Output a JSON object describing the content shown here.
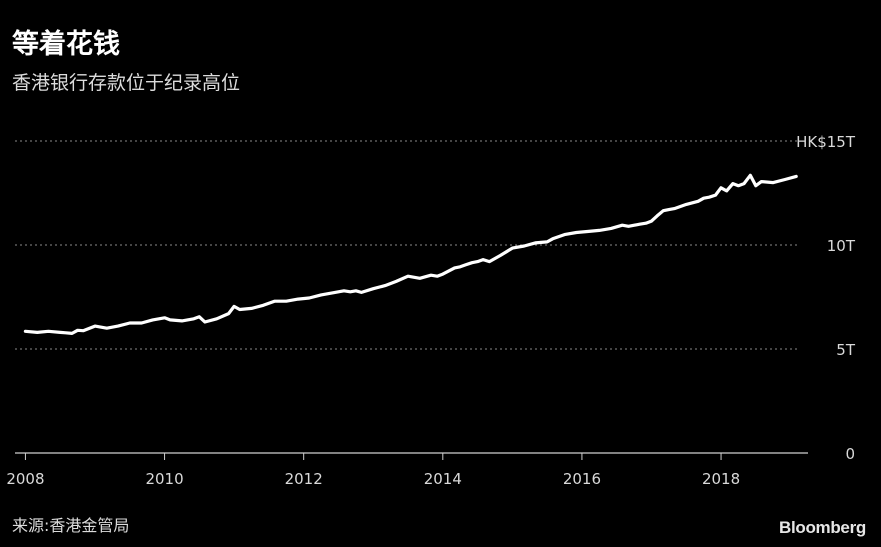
{
  "title": "等着花钱",
  "subtitle": "香港银行存款位于纪录高位",
  "source": "来源:香港金管局",
  "brand": "Bloomberg",
  "colors": {
    "background": "#000000",
    "line": "#ffffff",
    "grid": "#8a8a8a",
    "text": "#d9d9d9"
  },
  "chart_data": {
    "type": "line",
    "title": "等着花钱",
    "subtitle": "香港银行存款位于纪录高位",
    "xlabel": "",
    "ylabel": "",
    "xlim": [
      2007.85,
      2019.25
    ],
    "ylim": [
      0,
      15
    ],
    "grid": true,
    "x_ticks": [
      {
        "value": 2008,
        "label": "2008"
      },
      {
        "value": 2010,
        "label": "2010"
      },
      {
        "value": 2012,
        "label": "2012"
      },
      {
        "value": 2014,
        "label": "2014"
      },
      {
        "value": 2016,
        "label": "2016"
      },
      {
        "value": 2018,
        "label": "2018"
      }
    ],
    "y_ticks": [
      {
        "value": 0,
        "label": "0"
      },
      {
        "value": 5,
        "label": "5T"
      },
      {
        "value": 10,
        "label": "10T"
      },
      {
        "value": 15,
        "label": "HK$15T"
      }
    ],
    "series": [
      {
        "points": [
          [
            2008.0,
            5.85
          ],
          [
            2008.17,
            5.8
          ],
          [
            2008.33,
            5.85
          ],
          [
            2008.5,
            5.8
          ],
          [
            2008.58,
            5.78
          ],
          [
            2008.67,
            5.75
          ],
          [
            2008.75,
            5.9
          ],
          [
            2008.83,
            5.88
          ],
          [
            2009.0,
            6.1
          ],
          [
            2009.17,
            6.0
          ],
          [
            2009.33,
            6.1
          ],
          [
            2009.5,
            6.25
          ],
          [
            2009.67,
            6.25
          ],
          [
            2009.83,
            6.4
          ],
          [
            2010.0,
            6.5
          ],
          [
            2010.08,
            6.4
          ],
          [
            2010.25,
            6.35
          ],
          [
            2010.42,
            6.45
          ],
          [
            2010.5,
            6.55
          ],
          [
            2010.58,
            6.3
          ],
          [
            2010.75,
            6.45
          ],
          [
            2010.92,
            6.7
          ],
          [
            2011.0,
            7.05
          ],
          [
            2011.08,
            6.9
          ],
          [
            2011.25,
            6.95
          ],
          [
            2011.42,
            7.1
          ],
          [
            2011.58,
            7.3
          ],
          [
            2011.75,
            7.3
          ],
          [
            2011.92,
            7.4
          ],
          [
            2012.08,
            7.45
          ],
          [
            2012.25,
            7.6
          ],
          [
            2012.42,
            7.7
          ],
          [
            2012.58,
            7.8
          ],
          [
            2012.67,
            7.75
          ],
          [
            2012.75,
            7.8
          ],
          [
            2012.83,
            7.72
          ],
          [
            2013.0,
            7.9
          ],
          [
            2013.17,
            8.05
          ],
          [
            2013.33,
            8.25
          ],
          [
            2013.5,
            8.5
          ],
          [
            2013.67,
            8.4
          ],
          [
            2013.83,
            8.55
          ],
          [
            2013.92,
            8.5
          ],
          [
            2014.0,
            8.6
          ],
          [
            2014.17,
            8.9
          ],
          [
            2014.25,
            8.95
          ],
          [
            2014.33,
            9.05
          ],
          [
            2014.42,
            9.15
          ],
          [
            2014.5,
            9.2
          ],
          [
            2014.58,
            9.3
          ],
          [
            2014.67,
            9.2
          ],
          [
            2014.83,
            9.5
          ],
          [
            2015.0,
            9.85
          ],
          [
            2015.17,
            9.95
          ],
          [
            2015.33,
            10.1
          ],
          [
            2015.5,
            10.15
          ],
          [
            2015.58,
            10.3
          ],
          [
            2015.75,
            10.5
          ],
          [
            2015.92,
            10.6
          ],
          [
            2016.08,
            10.65
          ],
          [
            2016.25,
            10.7
          ],
          [
            2016.42,
            10.8
          ],
          [
            2016.58,
            10.95
          ],
          [
            2016.67,
            10.9
          ],
          [
            2016.83,
            11.0
          ],
          [
            2016.92,
            11.05
          ],
          [
            2017.0,
            11.15
          ],
          [
            2017.08,
            11.4
          ],
          [
            2017.17,
            11.65
          ],
          [
            2017.25,
            11.7
          ],
          [
            2017.33,
            11.75
          ],
          [
            2017.5,
            11.95
          ],
          [
            2017.67,
            12.1
          ],
          [
            2017.75,
            12.25
          ],
          [
            2017.83,
            12.3
          ],
          [
            2017.92,
            12.4
          ],
          [
            2018.0,
            12.75
          ],
          [
            2018.08,
            12.6
          ],
          [
            2018.17,
            12.95
          ],
          [
            2018.25,
            12.85
          ],
          [
            2018.33,
            12.95
          ],
          [
            2018.42,
            13.35
          ],
          [
            2018.5,
            12.85
          ],
          [
            2018.58,
            13.05
          ],
          [
            2018.75,
            13.0
          ],
          [
            2018.92,
            13.15
          ],
          [
            2019.08,
            13.3
          ]
        ]
      }
    ]
  }
}
